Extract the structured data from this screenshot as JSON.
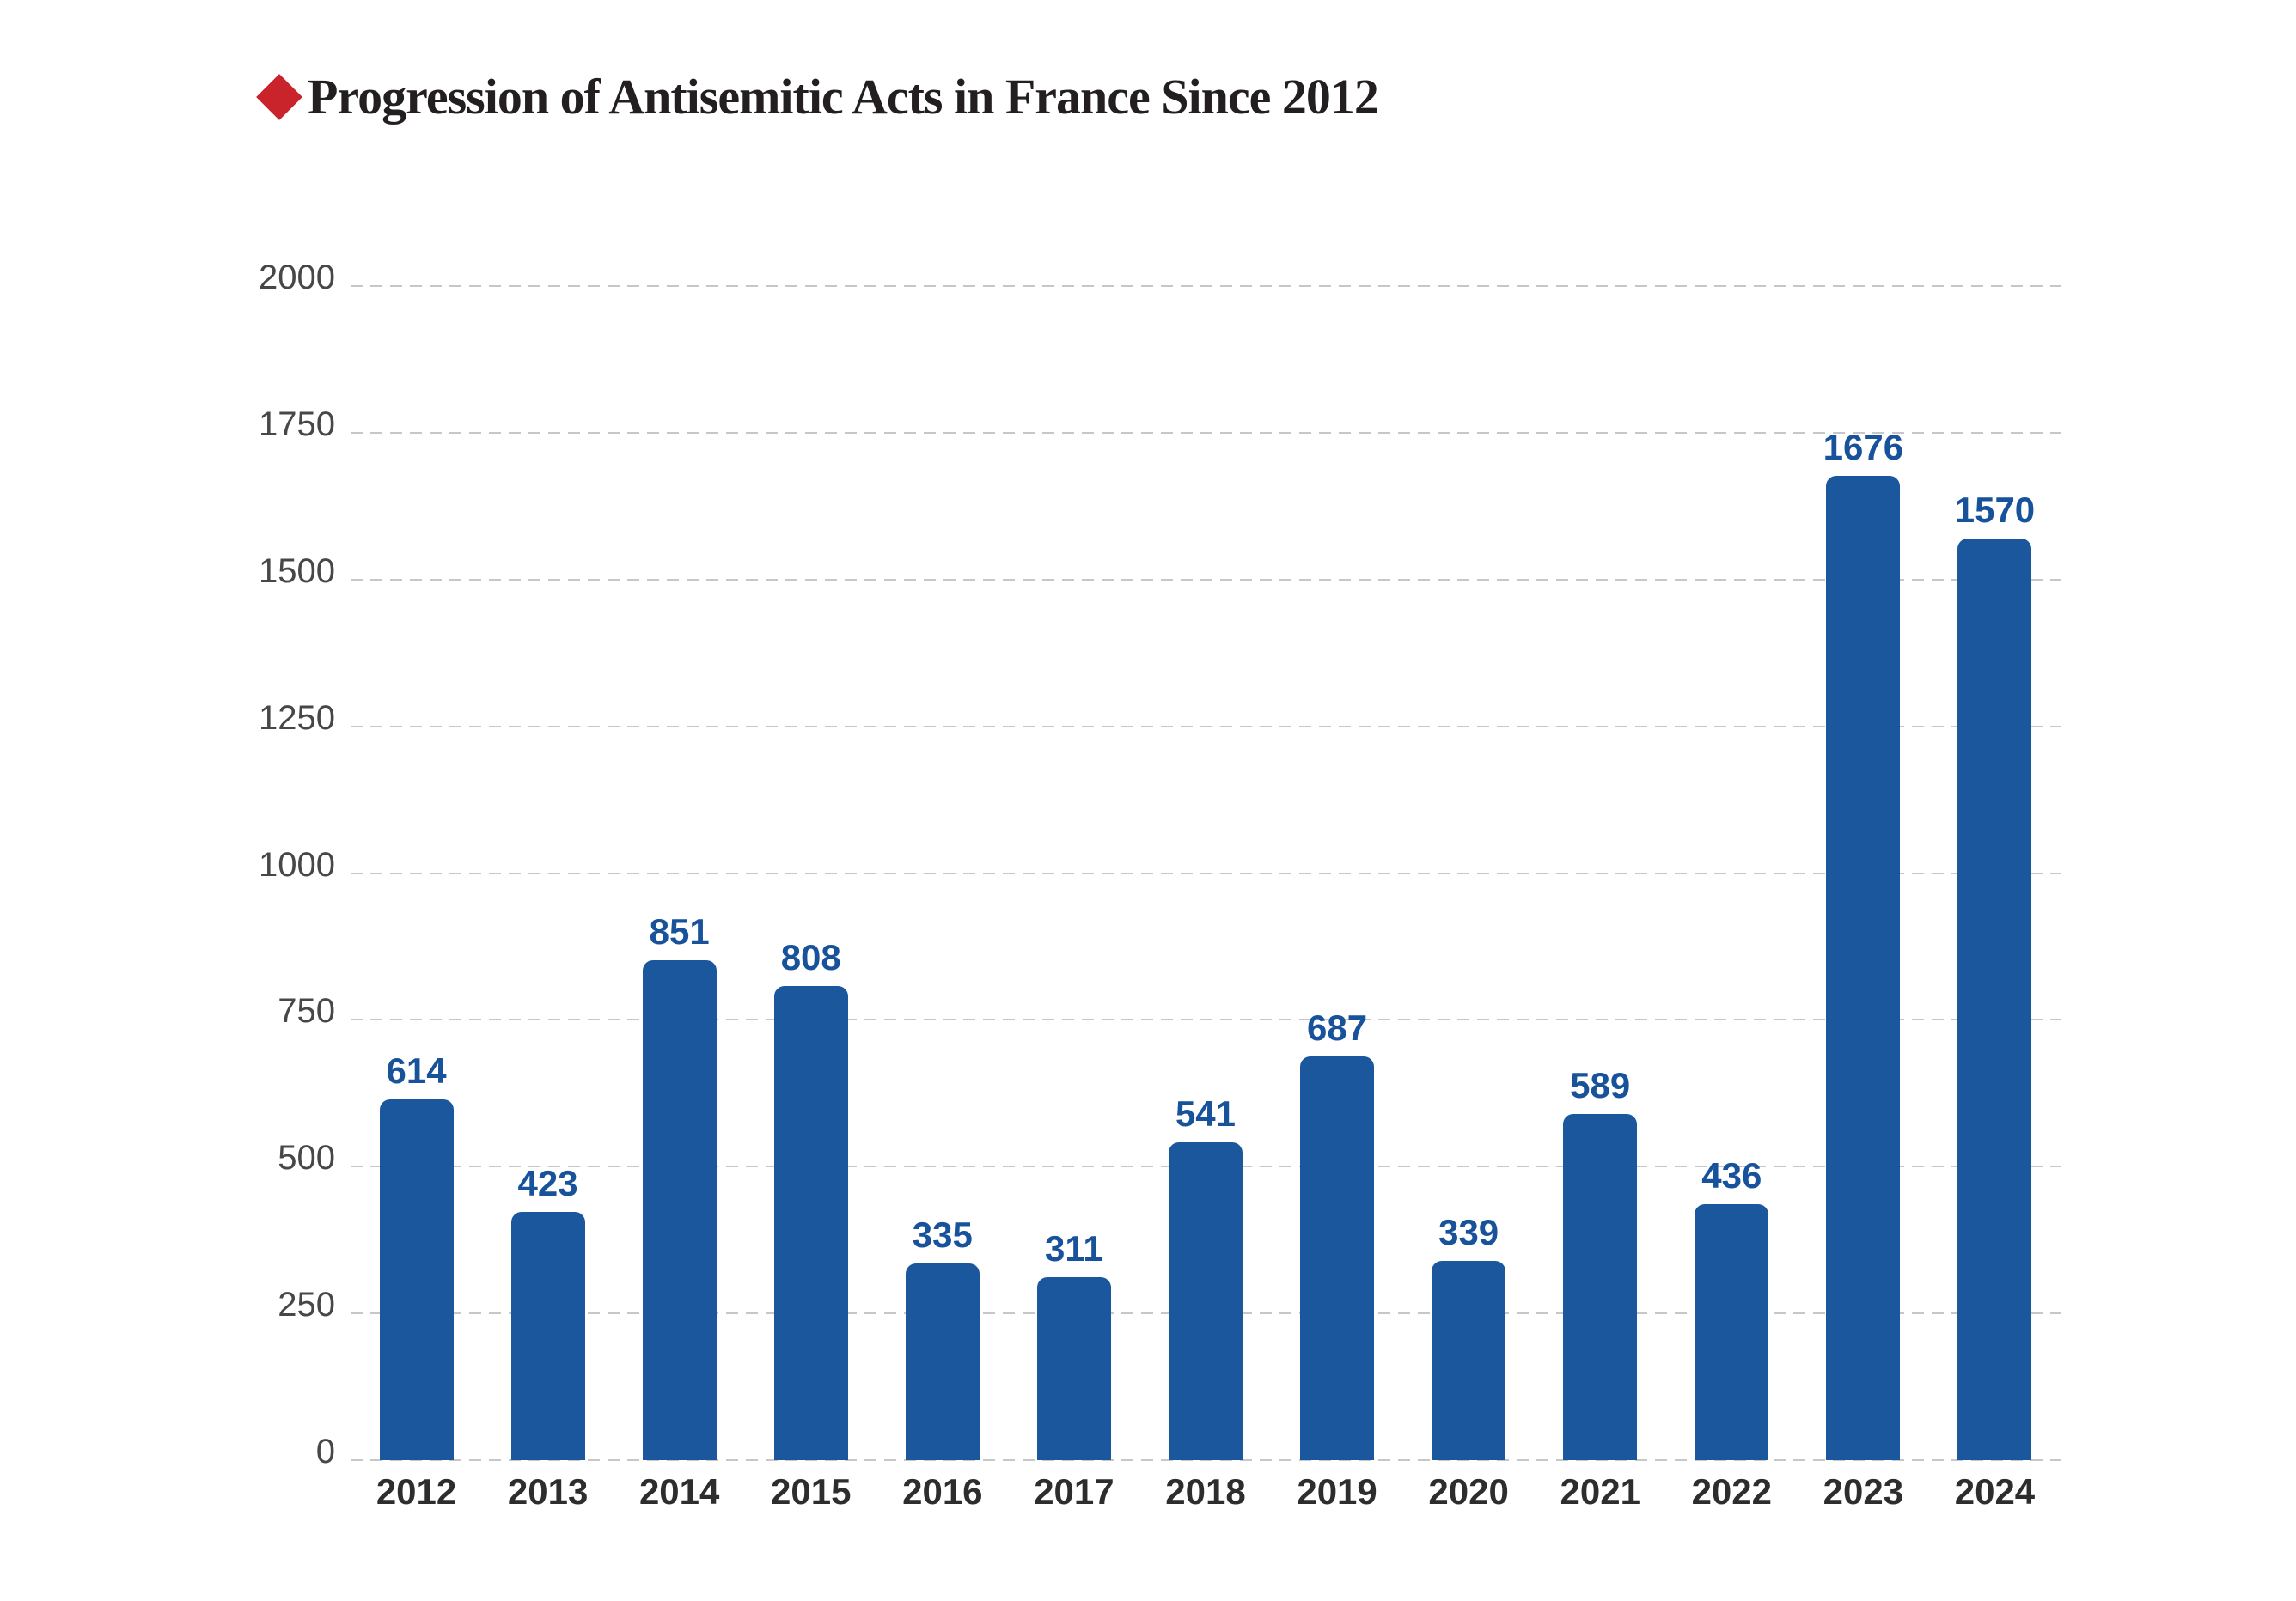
{
  "header": {
    "title": "Progression of Antisemitic Acts in France Since 2012",
    "bullet_icon": "diamond-icon",
    "bullet_color": "#c9232c",
    "title_color": "#231f20"
  },
  "chart_data": {
    "type": "bar",
    "title": "Progression of Antisemitic Acts in France Since 2012",
    "categories": [
      "2012",
      "2013",
      "2014",
      "2015",
      "2016",
      "2017",
      "2018",
      "2019",
      "2020",
      "2021",
      "2022",
      "2023",
      "2024"
    ],
    "values": [
      614,
      423,
      851,
      808,
      335,
      311,
      541,
      687,
      339,
      589,
      436,
      1676,
      1570
    ],
    "xlabel": "",
    "ylabel": "",
    "ylim": [
      0,
      2000
    ],
    "yticks": [
      0,
      250,
      500,
      750,
      1000,
      1250,
      1500,
      1750,
      2000
    ],
    "grid": "horizontal-dashed",
    "legend": "none",
    "colors": {
      "bar": "#1a579c",
      "value_label": "#17529b",
      "y_tick_label": "#474747",
      "x_tick_label": "#2d2d2d",
      "gridline": "#c7c7c7"
    }
  }
}
